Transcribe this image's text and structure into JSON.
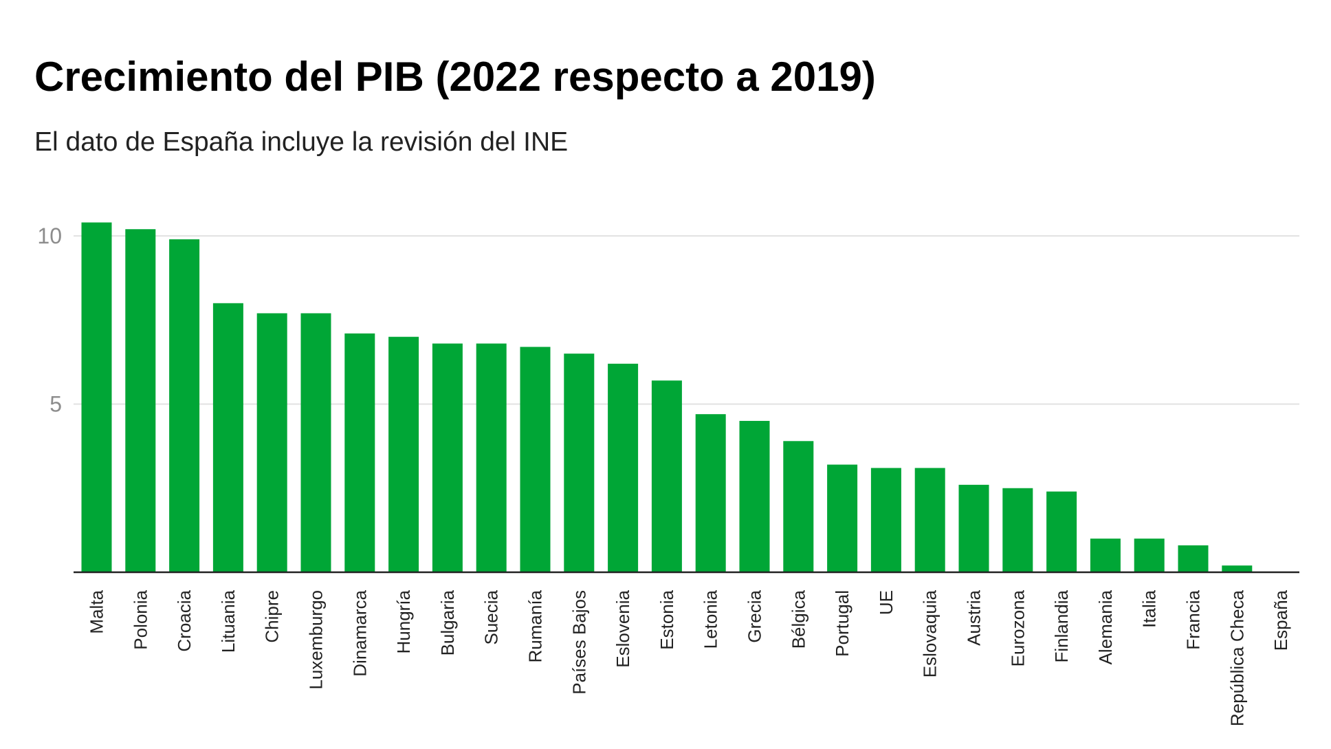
{
  "chart_data": {
    "type": "bar",
    "title": "Crecimiento del PIB (2022 respecto a 2019)",
    "subtitle": "El dato de España incluye la revisión del INE",
    "xlabel": "",
    "ylabel": "",
    "ylim": [
      0,
      10.5
    ],
    "yticks": [
      5,
      10
    ],
    "grid": true,
    "bar_color": "#00a636",
    "categories": [
      "Malta",
      "Polonia",
      "Croacia",
      "Lituania",
      "Chipre",
      "Luxemburgo",
      "Dinamarca",
      "Hungría",
      "Bulgaria",
      "Suecia",
      "Rumanía",
      "Países Bajos",
      "Eslovenia",
      "Estonia",
      "Letonia",
      "Grecia",
      "Bélgica",
      "Portugal",
      "UE",
      "Eslovaquia",
      "Austria",
      "Eurozona",
      "Finlandia",
      "Alemania",
      "Italia",
      "Francia",
      "República Checa",
      "España"
    ],
    "values": [
      10.4,
      10.2,
      9.9,
      8.0,
      7.7,
      7.7,
      7.1,
      7.0,
      6.8,
      6.8,
      6.7,
      6.5,
      6.2,
      5.7,
      4.7,
      4.5,
      3.9,
      3.2,
      3.1,
      3.1,
      2.6,
      2.5,
      2.4,
      1.0,
      1.0,
      0.8,
      0.2,
      0.0
    ]
  }
}
